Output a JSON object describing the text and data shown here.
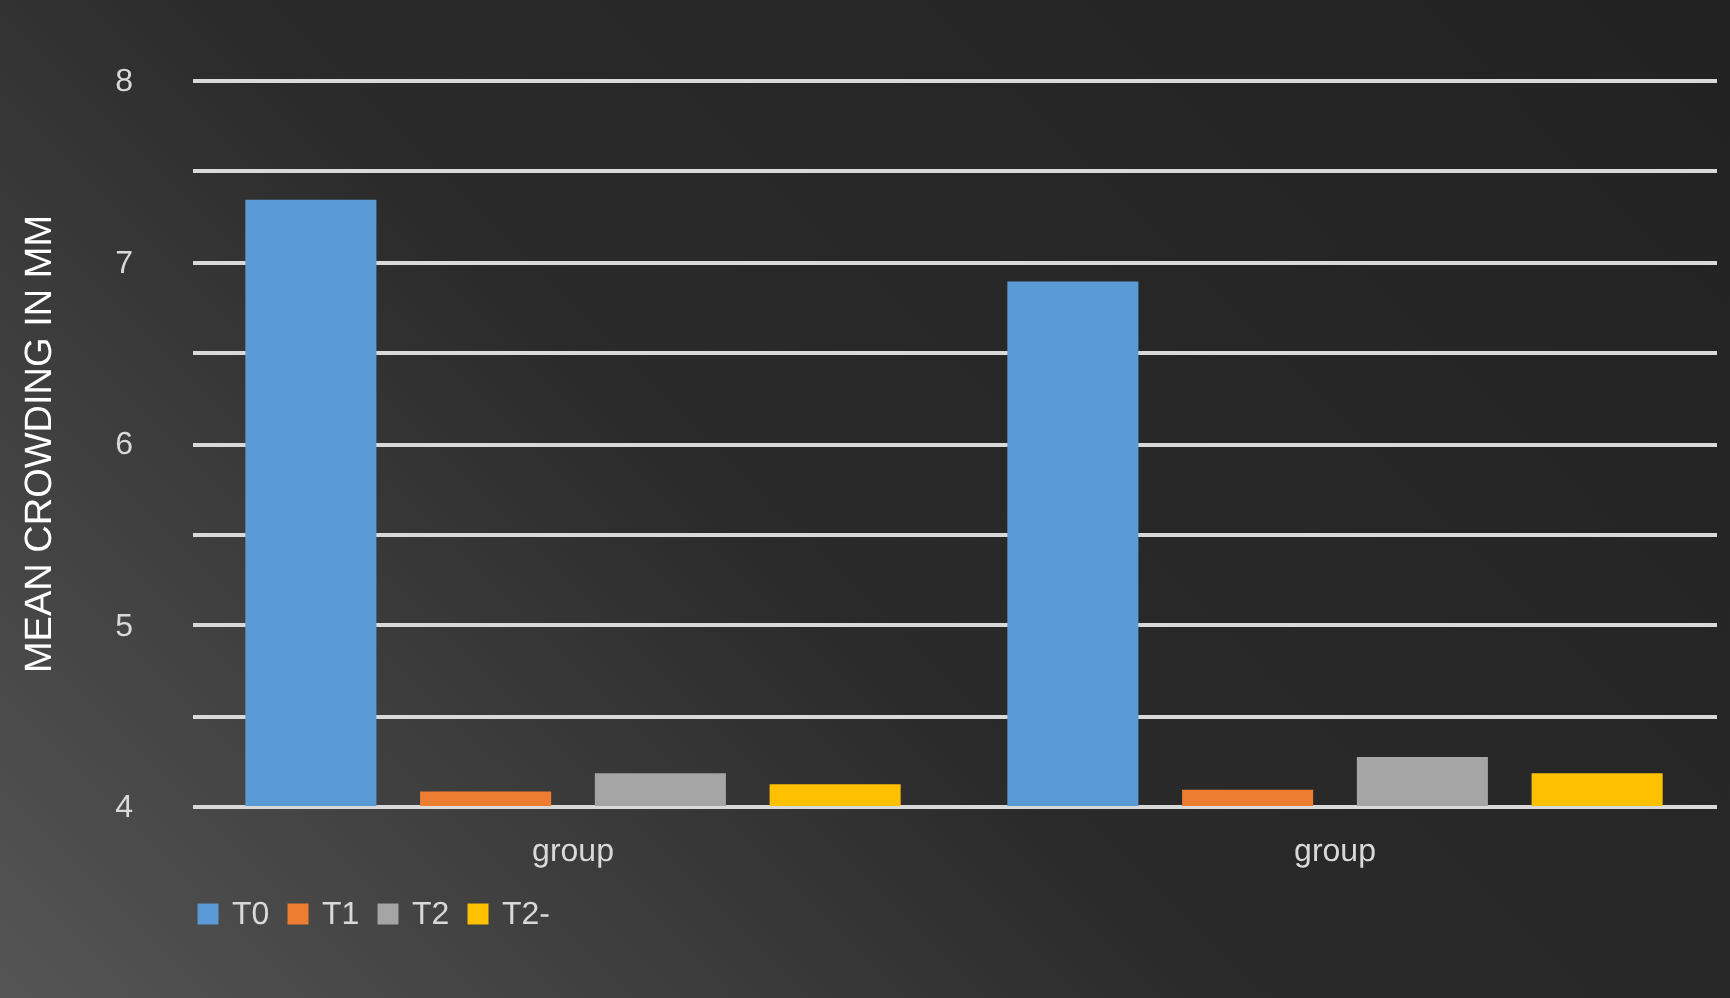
{
  "chart_data": {
    "type": "bar",
    "ylabel": "MEAN CROWDING IN MM",
    "categories": [
      "group",
      "group"
    ],
    "series": [
      {
        "name": "T0",
        "color": "#5b9bd5",
        "values": [
          7.34,
          6.89
        ]
      },
      {
        "name": "T1",
        "color": "#ed7d31",
        "values": [
          4.08,
          4.09
        ]
      },
      {
        "name": "T2",
        "color": "#a5a5a5",
        "values": [
          4.18,
          4.27
        ]
      },
      {
        "name": "T2-",
        "color": "#ffc000",
        "values": [
          4.12,
          4.18
        ]
      }
    ],
    "ylim": [
      4,
      8
    ],
    "yticks": [
      4,
      {
        "value": 4.5,
        "label": null
      },
      5,
      {
        "value": 5.5,
        "label": null
      },
      6,
      {
        "value": 6.5,
        "label": null
      },
      7,
      {
        "value": 7.5,
        "label": null
      },
      8
    ],
    "grid": "y",
    "legend": "bottom"
  }
}
